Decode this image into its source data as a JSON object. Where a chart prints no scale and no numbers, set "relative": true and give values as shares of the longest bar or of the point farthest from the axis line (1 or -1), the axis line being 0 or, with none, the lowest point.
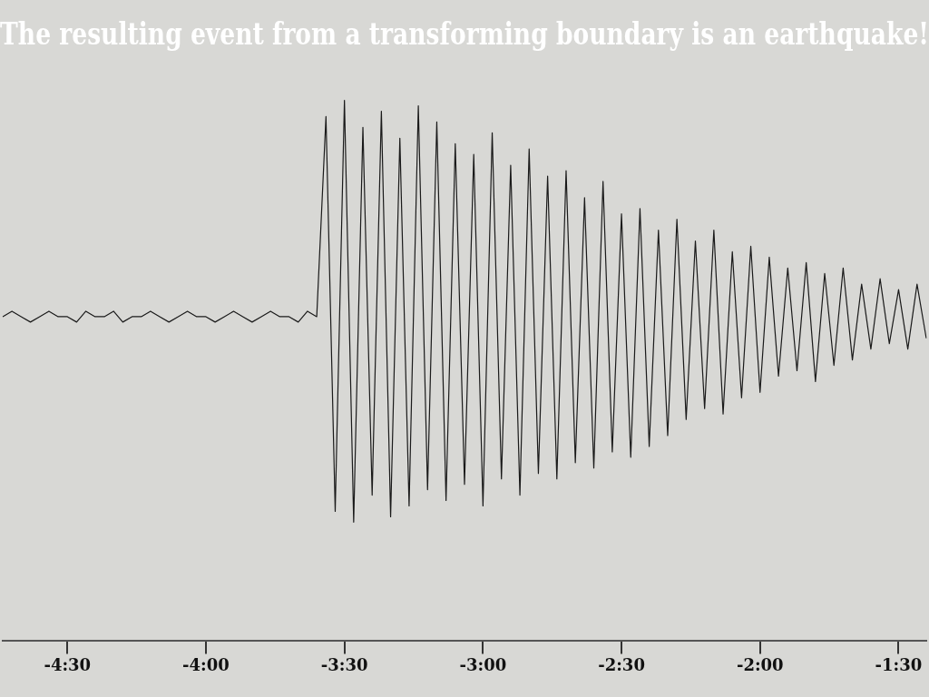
{
  "chart_data": {
    "type": "line",
    "title": "The resulting event from a transforming boundary is an earthquake!",
    "relative": true,
    "marker": "none",
    "line_style": "solid",
    "grid": false,
    "legend": false,
    "tick_labels": "x",
    "categories": [
      null,
      null,
      null,
      null,
      null,
      null,
      null,
      "-4:30",
      null,
      null,
      null,
      null,
      null,
      null,
      null,
      null,
      null,
      null,
      null,
      null,
      null,
      null,
      "-4:00",
      null,
      null,
      null,
      null,
      null,
      null,
      null,
      null,
      null,
      null,
      null,
      null,
      null,
      null,
      "-3:30",
      null,
      null,
      null,
      null,
      null,
      null,
      null,
      null,
      null,
      null,
      null,
      null,
      null,
      null,
      "-3:00",
      null,
      null,
      null,
      null,
      null,
      null,
      null,
      null,
      null,
      null,
      null,
      null,
      null,
      null,
      "-2:30",
      null,
      null,
      null,
      null,
      null,
      null,
      null,
      null,
      null,
      null,
      null,
      null,
      null,
      null,
      "-2:00",
      null,
      null,
      null,
      null,
      null,
      null,
      null,
      null,
      null,
      null,
      null,
      null,
      null,
      null,
      "-1:30",
      null,
      null,
      null
    ],
    "series": [
      {
        "color": "#1a1a1a",
        "values": [
          0.6,
          0.61,
          0.6,
          0.59,
          0.6,
          0.61,
          0.6,
          0.6,
          0.59,
          0.61,
          0.6,
          0.6,
          0.61,
          0.59,
          0.6,
          0.6,
          0.61,
          0.6,
          0.59,
          0.6,
          0.61,
          0.6,
          0.6,
          0.59,
          0.6,
          0.61,
          0.6,
          0.59,
          0.6,
          0.61,
          0.6,
          0.6,
          0.59,
          0.61,
          0.6,
          0.97,
          0.24,
          1.0,
          0.22,
          0.95,
          0.27,
          0.98,
          0.23,
          0.93,
          0.25,
          0.99,
          0.28,
          0.96,
          0.26,
          0.92,
          0.29,
          0.9,
          0.25,
          0.94,
          0.3,
          0.88,
          0.27,
          0.91,
          0.31,
          0.86,
          0.3,
          0.87,
          0.33,
          0.82,
          0.32,
          0.85,
          0.35,
          0.79,
          0.34,
          0.8,
          0.36,
          0.76,
          0.38,
          0.78,
          0.41,
          0.74,
          0.43,
          0.76,
          0.42,
          0.72,
          0.45,
          0.73,
          0.46,
          0.71,
          0.49,
          0.69,
          0.5,
          0.7,
          0.48,
          0.68,
          0.51,
          0.69,
          0.52,
          0.66,
          0.54,
          0.67,
          0.55,
          0.65,
          0.54,
          0.66,
          0.56
        ]
      }
    ]
  }
}
